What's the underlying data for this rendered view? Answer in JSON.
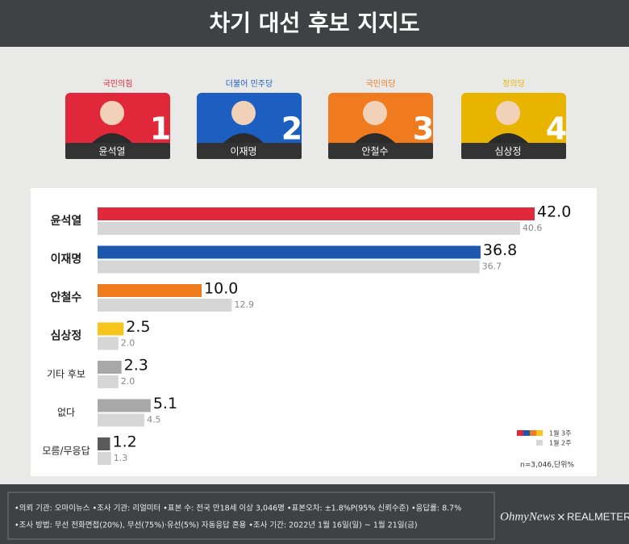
{
  "header": {
    "title": "차기 대선 후보 지지도"
  },
  "candidates": [
    {
      "party": "국민의힘",
      "name": "윤석열",
      "number": "1",
      "color": "#e0283a"
    },
    {
      "party": "더불어 민주당",
      "name": "이재명",
      "number": "2",
      "color": "#1d5fc0"
    },
    {
      "party": "국민의당",
      "name": "안철수",
      "number": "3",
      "color": "#f07a1e"
    },
    {
      "party": "정의당",
      "name": "심상정",
      "number": "4",
      "color": "#e8b400"
    }
  ],
  "chart_data": {
    "type": "bar",
    "orientation": "horizontal",
    "categories": [
      "윤석열",
      "이재명",
      "안철수",
      "심상정",
      "기타 후보",
      "없다",
      "모름/무응답"
    ],
    "series": [
      {
        "name": "1월 3주",
        "colors": [
          "#e0283a",
          "#1d58b0",
          "#f07a1e",
          "#f7c51c",
          "#a8a8a8",
          "#a8a8a8",
          "#5a5a5a"
        ],
        "values": [
          42.0,
          36.8,
          10.0,
          2.5,
          2.3,
          5.1,
          1.2
        ],
        "value_labels": [
          "42.0",
          "36.8",
          "10.0",
          "2.5",
          "2.3",
          "5.1",
          "1.2"
        ]
      },
      {
        "name": "1월 2주",
        "color": "#d6d6d6",
        "values": [
          40.6,
          36.7,
          12.9,
          2.0,
          2.0,
          4.5,
          1.3
        ],
        "value_labels": [
          "40.6",
          "36.7",
          "12.9",
          "2.0",
          "2.0",
          "4.5",
          "1.3"
        ]
      }
    ],
    "note": "n=3,046,단위%"
  },
  "footer": {
    "lines": [
      "•의뢰 기관: 오마이뉴스 •조사 기관: 리얼미터 •표본 수: 전국 만18세 이상 3,046명 •표본오차: ±1.8%P(95% 신뢰수준) •응답률: 8.7%",
      "•조사 방법: 무선 전화면접(20%), 무선(75%)·유선(5%) 자동응답 혼용 •조사 기간: 2022년 1월 16일(일) ~ 1월 21일(금)"
    ],
    "logo_left": "OhmyNews",
    "logo_sep": "×",
    "logo_right": "REALMETER"
  }
}
